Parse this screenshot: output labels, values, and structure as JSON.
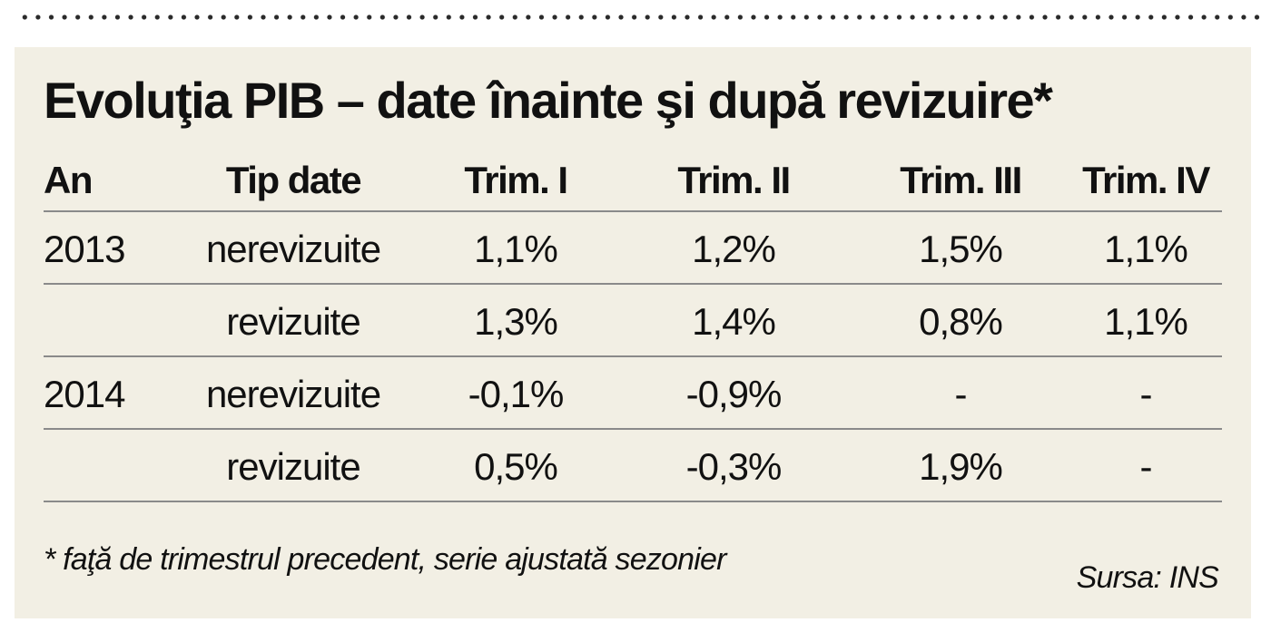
{
  "title": "Evoluţia PIB – date înainte şi după revizuire*",
  "table": {
    "headers": {
      "year": "An",
      "type": "Tip date",
      "q1": "Trim. I",
      "q2": "Trim. II",
      "q3": "Trim. III",
      "q4": "Trim. IV"
    },
    "rows": [
      {
        "year": "2013",
        "type": "nerevizuite",
        "q1": "1,1%",
        "q2": "1,2%",
        "q3": "1,5%",
        "q4": "1,1%"
      },
      {
        "year": "",
        "type": "revizuite",
        "q1": "1,3%",
        "q2": "1,4%",
        "q3": "0,8%",
        "q4": "1,1%"
      },
      {
        "year": "2014",
        "type": "nerevizuite",
        "q1": "-0,1%",
        "q2": "-0,9%",
        "q3": "-",
        "q4": "-"
      },
      {
        "year": "",
        "type": "revizuite",
        "q1": "0,5%",
        "q2": "-0,3%",
        "q3": "1,9%",
        "q4": "-"
      }
    ]
  },
  "footnote": "* faţă de trimestrul precedent, serie ajustată sezonier",
  "source": "Sursa: INS"
}
